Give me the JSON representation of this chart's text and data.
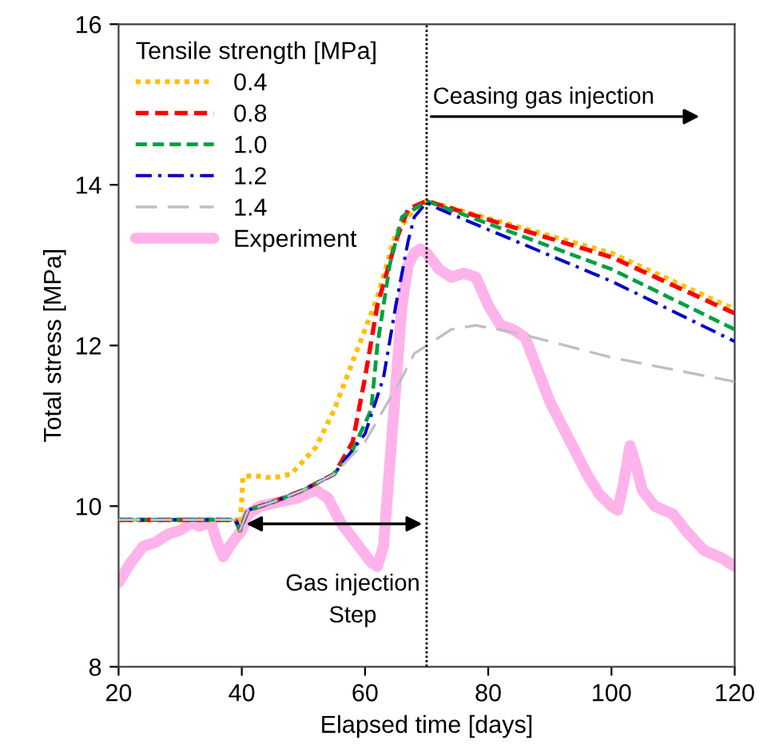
{
  "chart_data": {
    "type": "line",
    "xlabel": "Elapsed time [days]",
    "ylabel": "Total stress [MPa]",
    "legend_title": "Tensile strength [MPa]",
    "legend": "top left",
    "xlim": [
      20,
      120
    ],
    "ylim": [
      8,
      16
    ],
    "xticks": [
      20,
      40,
      60,
      80,
      100,
      120
    ],
    "yticks": [
      8,
      10,
      12,
      14,
      16
    ],
    "grid": false,
    "series": [
      {
        "name": "0.4",
        "color": "#ffc000",
        "line_style": "dotted",
        "x": [
          20,
          39,
          39.7,
          40.2,
          42,
          45,
          48,
          52,
          55,
          58,
          62,
          65,
          68,
          70,
          100,
          120
        ],
        "values": [
          9.83,
          9.83,
          9.7,
          10.37,
          10.38,
          10.35,
          10.4,
          10.73,
          11.2,
          11.8,
          12.6,
          13.4,
          13.7,
          13.8,
          13.15,
          12.45
        ]
      },
      {
        "name": "0.8",
        "color": "#ff0000",
        "line_style": "dashed",
        "x": [
          20,
          39,
          39.7,
          41,
          45,
          50,
          55,
          58,
          60,
          62,
          65,
          67,
          70,
          100,
          120
        ],
        "values": [
          9.83,
          9.83,
          9.7,
          9.95,
          10.05,
          10.2,
          10.4,
          10.8,
          11.6,
          12.5,
          13.3,
          13.7,
          13.8,
          13.1,
          12.4
        ]
      },
      {
        "name": "1.0",
        "color": "#00a040",
        "line_style": "dashed",
        "x": [
          20,
          39,
          39.7,
          41,
          45,
          50,
          55,
          58,
          61,
          62,
          64,
          66,
          70,
          100,
          120
        ],
        "values": [
          9.83,
          9.83,
          9.7,
          9.95,
          10.05,
          10.2,
          10.4,
          10.7,
          11.2,
          12.0,
          13.0,
          13.6,
          13.8,
          12.95,
          12.2
        ]
      },
      {
        "name": "1.2",
        "color": "#0000cc",
        "line_style": "dashdot",
        "x": [
          20,
          39,
          39.7,
          41,
          45,
          50,
          55,
          60,
          63,
          65,
          67,
          68,
          70,
          72,
          100,
          120
        ],
        "values": [
          9.83,
          9.83,
          9.7,
          9.95,
          10.05,
          10.2,
          10.4,
          10.9,
          11.6,
          12.5,
          13.3,
          13.6,
          13.78,
          13.7,
          12.8,
          12.05
        ]
      },
      {
        "name": "1.4",
        "color": "#bfbfbf",
        "line_style": "longdash",
        "x": [
          20,
          39,
          39.7,
          41,
          45,
          50,
          55,
          60,
          63,
          66,
          68,
          70,
          74,
          78,
          85,
          100,
          120
        ],
        "values": [
          9.83,
          9.83,
          9.7,
          9.95,
          10.05,
          10.2,
          10.4,
          10.8,
          11.2,
          11.6,
          11.9,
          12.0,
          12.2,
          12.25,
          12.15,
          11.85,
          11.55
        ]
      },
      {
        "name": "Experiment",
        "color": "#ffb3ea",
        "line_style": "solid",
        "x": [
          20,
          22,
          24,
          26,
          28,
          30,
          32,
          33,
          35,
          36,
          37,
          38,
          40,
          41,
          43,
          46,
          49,
          52,
          54,
          56,
          58,
          61,
          62,
          63,
          64,
          65,
          66,
          67,
          68,
          69,
          70,
          72,
          74,
          76,
          78,
          80,
          82,
          84,
          86,
          88,
          90,
          92,
          94,
          96,
          98,
          100,
          101,
          102,
          103,
          104,
          105,
          107,
          110,
          112,
          115,
          118,
          120
        ],
        "values": [
          9.05,
          9.3,
          9.5,
          9.55,
          9.65,
          9.7,
          9.8,
          9.75,
          9.8,
          9.55,
          9.37,
          9.5,
          9.7,
          9.9,
          10.0,
          10.05,
          10.1,
          10.2,
          10.1,
          9.8,
          9.6,
          9.3,
          9.25,
          9.5,
          10.5,
          11.5,
          12.5,
          13.0,
          13.15,
          13.2,
          13.15,
          12.95,
          12.85,
          12.9,
          12.85,
          12.5,
          12.25,
          12.2,
          12.1,
          11.7,
          11.3,
          11.0,
          10.7,
          10.4,
          10.15,
          10.0,
          9.95,
          10.3,
          10.75,
          10.5,
          10.2,
          10.0,
          9.9,
          9.7,
          9.45,
          9.35,
          9.25
        ]
      }
    ],
    "ref_lines": [
      {
        "axis": "x",
        "value": 70,
        "color": "#000000",
        "line_style": "dotted"
      }
    ],
    "annotations": [
      {
        "text": "Gas injection\nStep",
        "x": 40,
        "y": 9.78
      },
      {
        "text": "Ceasing gas injection",
        "x": 70,
        "y": 14.85
      }
    ]
  }
}
